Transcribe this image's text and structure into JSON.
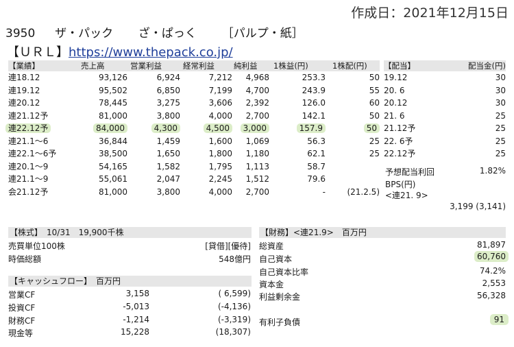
{
  "header": {
    "created": "作成日：2021年12月15日",
    "code": "3950",
    "name": "ザ・パック",
    "kana": "ざ・ぱっく",
    "industry": "［パルプ・紙］",
    "url_label": "【ＵＲＬ】",
    "url": "https://www.thepack.co.jp/"
  },
  "performance": {
    "columns": [
      "【業績】",
      "売上高",
      "営業利益",
      "経常利益",
      "純利益",
      "1株益(円)",
      "1株配(円)"
    ],
    "rows": [
      {
        "period": "連18.12",
        "sales": "93,126",
        "op": "6,924",
        "ord": "7,212",
        "net": "4,968",
        "eps": "253.3",
        "dps": "50"
      },
      {
        "period": "連19.12",
        "sales": "95,502",
        "op": "6,850",
        "ord": "7,199",
        "net": "4,700",
        "eps": "243.9",
        "dps": "55"
      },
      {
        "period": "連20.12",
        "sales": "78,445",
        "op": "3,275",
        "ord": "3,606",
        "net": "2,392",
        "eps": "126.0",
        "dps": "60"
      },
      {
        "period": "連21.12予",
        "sales": "81,000",
        "op": "3,800",
        "ord": "4,000",
        "net": "2,700",
        "eps": "142.1",
        "dps": "50"
      },
      {
        "period": "連22.12予",
        "sales": "84,000",
        "op": "4,300",
        "ord": "4,500",
        "net": "3,000",
        "eps": "157.9",
        "dps": "50"
      },
      {
        "period": "連21.1〜6",
        "sales": "36,844",
        "op": "1,459",
        "ord": "1,600",
        "net": "1,069",
        "eps": "56.3",
        "dps": "25"
      },
      {
        "period": "連22.1〜6予",
        "sales": "38,500",
        "op": "1,650",
        "ord": "1,800",
        "net": "1,180",
        "eps": "62.1",
        "dps": "25"
      },
      {
        "period": "連20.1〜9",
        "sales": "54,165",
        "op": "1,582",
        "ord": "1,795",
        "net": "1,113",
        "eps": "58.7",
        "dps": ""
      },
      {
        "period": "連21.1〜9",
        "sales": "55,061",
        "op": "2,047",
        "ord": "2,245",
        "net": "1,512",
        "eps": "79.6",
        "dps": ""
      },
      {
        "period": "会21.12予",
        "sales": "81,000",
        "op": "3,800",
        "ord": "4,000",
        "net": "2,700",
        "eps": "-",
        "dps": "(21.2.5)"
      }
    ]
  },
  "dividend": {
    "columns": [
      "【配当】",
      "配当金(円)"
    ],
    "rows": [
      {
        "period": "19.12",
        "amount": "30"
      },
      {
        "period": "20. 6",
        "amount": "30"
      },
      {
        "period": "20.12",
        "amount": "30"
      },
      {
        "period": "21. 6",
        "amount": "25"
      },
      {
        "period": "21.12予",
        "amount": "25"
      },
      {
        "period": "22. 6予",
        "amount": "25"
      },
      {
        "period": "22.12予",
        "amount": "25"
      }
    ],
    "yield_label": "予想配当利回",
    "yield_value": "1.82%",
    "bps_label": "BPS(円)",
    "bps_sub": "<連21. 9>",
    "bps_value": "3,199 (3,141)"
  },
  "stock": {
    "header": "【株式】　10/31　19,900千株",
    "unit_label": "売買単位100株",
    "unit_value": "[貸借][優待]",
    "cap_label": "時価総額",
    "cap_value": "548億円"
  },
  "cashflow": {
    "header": "【キャッシュフロー】　百万円",
    "rows": [
      {
        "label": "営業CF",
        "current": "3,158",
        "prev": "( 6,599)"
      },
      {
        "label": "投資CF",
        "current": "-5,013",
        "prev": "(-4,136)"
      },
      {
        "label": "財務CF",
        "current": "-1,214",
        "prev": "(-3,319)"
      },
      {
        "label": "現金等",
        "current": "15,228",
        "prev": "(18,307)"
      }
    ]
  },
  "finance": {
    "header": "【財務】<連21.9>　百万円",
    "rows": [
      {
        "label": "総資産",
        "value": "81,897"
      },
      {
        "label": "自己資本",
        "value": "60,760"
      },
      {
        "label": "自己資本比率",
        "value": "74.2%"
      },
      {
        "label": "資本金",
        "value": "2,553"
      },
      {
        "label": "利益剰余金",
        "value": "56,328"
      }
    ],
    "debt_label": "有利子負債",
    "debt_value": "91"
  },
  "colors": {
    "header_bg": "#e6e6e6",
    "highlight": "#dcedc8",
    "link": "#1f3f9a"
  }
}
